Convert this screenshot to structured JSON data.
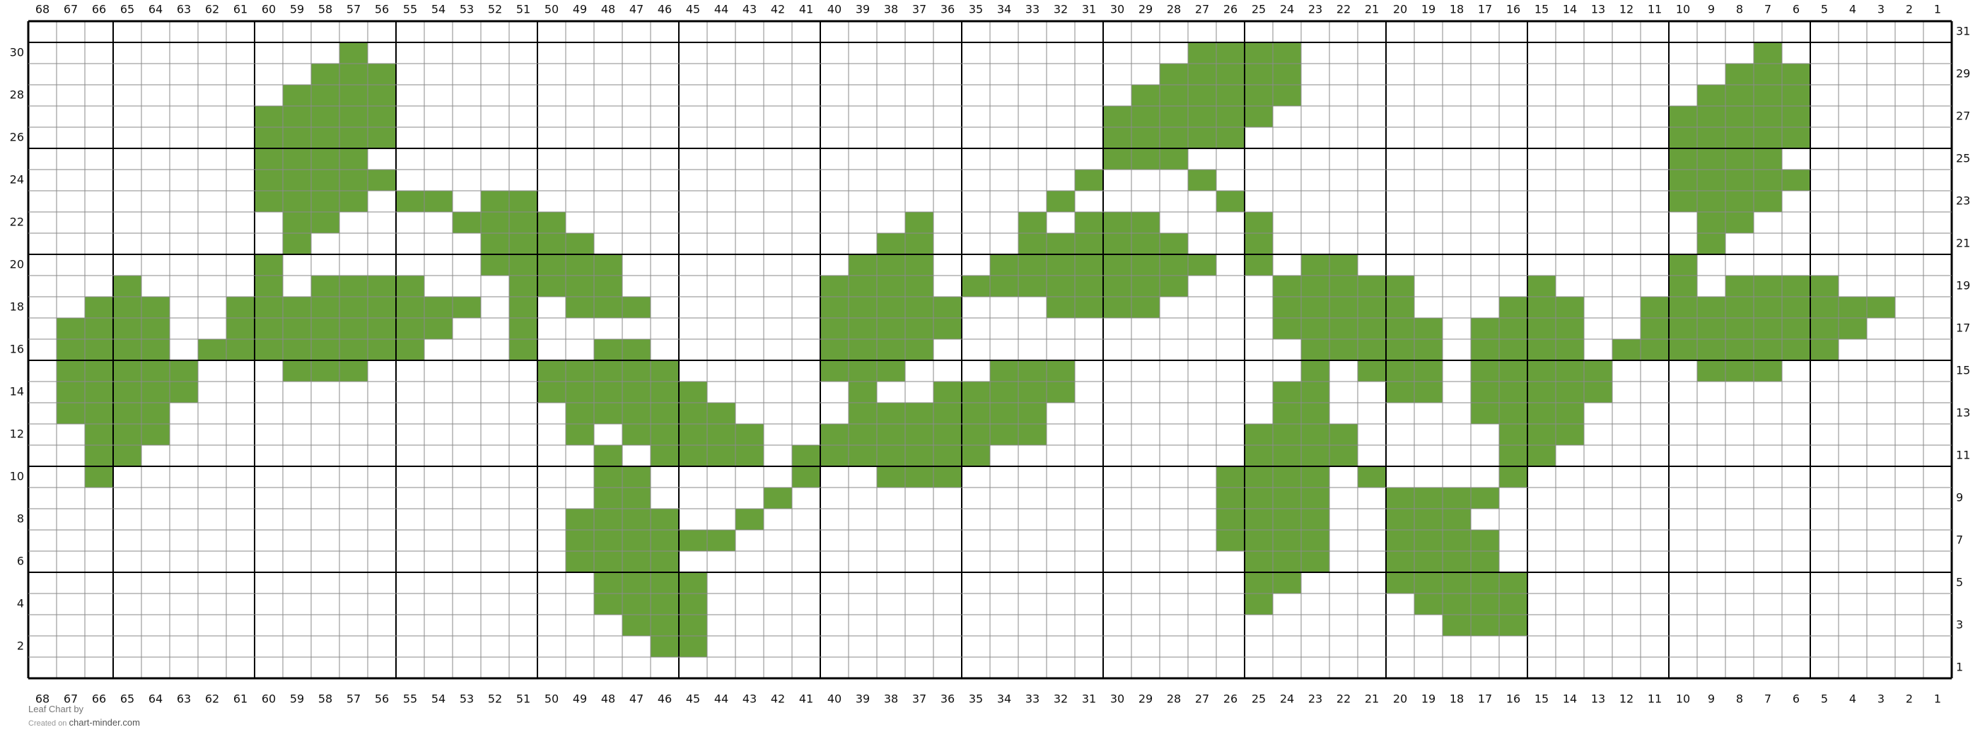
{
  "chart_data": {
    "type": "heatmap",
    "title": "",
    "columns": 68,
    "rows": 31,
    "column_order": "descending-left-to-right",
    "left_row_labels": "even",
    "right_row_labels": "odd",
    "major_grid_every": 5,
    "fill_color": "#68a03a",
    "empty_color": "#ffffff",
    "filled_cells_by_row": {
      "31": [],
      "30": [
        [
          57,
          57
        ],
        [
          27,
          24
        ],
        [
          7,
          7
        ]
      ],
      "29": [
        [
          58,
          56
        ],
        [
          28,
          24
        ],
        [
          8,
          6
        ]
      ],
      "28": [
        [
          59,
          56
        ],
        [
          29,
          24
        ],
        [
          9,
          6
        ]
      ],
      "27": [
        [
          60,
          56
        ],
        [
          30,
          25
        ],
        [
          10,
          6
        ]
      ],
      "26": [
        [
          60,
          56
        ],
        [
          30,
          26
        ],
        [
          10,
          6
        ]
      ],
      "25": [
        [
          60,
          57
        ],
        [
          30,
          28
        ],
        [
          10,
          7
        ]
      ],
      "24": [
        [
          60,
          56
        ],
        [
          31,
          31
        ],
        [
          27,
          27
        ],
        [
          10,
          6
        ]
      ],
      "23": [
        [
          60,
          57
        ],
        [
          55,
          54
        ],
        [
          52,
          51
        ],
        [
          32,
          32
        ],
        [
          26,
          26
        ],
        [
          10,
          7
        ]
      ],
      "22": [
        [
          59,
          58
        ],
        [
          53,
          50
        ],
        [
          37,
          37
        ],
        [
          33,
          33
        ],
        [
          31,
          29
        ],
        [
          25,
          25
        ],
        [
          9,
          8
        ]
      ],
      "21": [
        [
          59,
          59
        ],
        [
          52,
          49
        ],
        [
          38,
          37
        ],
        [
          33,
          28
        ],
        [
          25,
          25
        ],
        [
          9,
          9
        ]
      ],
      "20": [
        [
          60,
          60
        ],
        [
          52,
          48
        ],
        [
          39,
          37
        ],
        [
          34,
          27
        ],
        [
          25,
          25
        ],
        [
          23,
          22
        ],
        [
          10,
          10
        ]
      ],
      "19": [
        [
          65,
          65
        ],
        [
          60,
          60
        ],
        [
          58,
          55
        ],
        [
          51,
          48
        ],
        [
          40,
          37
        ],
        [
          35,
          28
        ],
        [
          24,
          20
        ],
        [
          15,
          15
        ],
        [
          10,
          10
        ],
        [
          8,
          5
        ]
      ],
      "18": [
        [
          66,
          64
        ],
        [
          61,
          53
        ],
        [
          51,
          51
        ],
        [
          49,
          47
        ],
        [
          40,
          36
        ],
        [
          32,
          29
        ],
        [
          24,
          20
        ],
        [
          16,
          14
        ],
        [
          11,
          3
        ]
      ],
      "17": [
        [
          67,
          64
        ],
        [
          61,
          54
        ],
        [
          51,
          51
        ],
        [
          40,
          36
        ],
        [
          24,
          19
        ],
        [
          17,
          14
        ],
        [
          11,
          4
        ]
      ],
      "16": [
        [
          67,
          64
        ],
        [
          62,
          55
        ],
        [
          51,
          51
        ],
        [
          48,
          47
        ],
        [
          40,
          37
        ],
        [
          23,
          19
        ],
        [
          17,
          14
        ],
        [
          12,
          5
        ]
      ],
      "15": [
        [
          67,
          63
        ],
        [
          59,
          57
        ],
        [
          50,
          46
        ],
        [
          40,
          38
        ],
        [
          34,
          32
        ],
        [
          23,
          23
        ],
        [
          21,
          19
        ],
        [
          17,
          13
        ],
        [
          9,
          7
        ]
      ],
      "14": [
        [
          67,
          63
        ],
        [
          50,
          45
        ],
        [
          39,
          39
        ],
        [
          36,
          32
        ],
        [
          24,
          23
        ],
        [
          20,
          19
        ],
        [
          17,
          13
        ]
      ],
      "13": [
        [
          67,
          64
        ],
        [
          49,
          44
        ],
        [
          39,
          33
        ],
        [
          24,
          23
        ],
        [
          17,
          14
        ]
      ],
      "12": [
        [
          66,
          64
        ],
        [
          49,
          49
        ],
        [
          47,
          43
        ],
        [
          40,
          33
        ],
        [
          25,
          22
        ],
        [
          16,
          14
        ]
      ],
      "11": [
        [
          66,
          65
        ],
        [
          48,
          48
        ],
        [
          46,
          43
        ],
        [
          41,
          35
        ],
        [
          25,
          22
        ],
        [
          16,
          15
        ]
      ],
      "10": [
        [
          66,
          66
        ],
        [
          48,
          47
        ],
        [
          41,
          41
        ],
        [
          38,
          36
        ],
        [
          26,
          23
        ],
        [
          21,
          21
        ],
        [
          16,
          16
        ]
      ],
      "9": [
        [
          48,
          47
        ],
        [
          42,
          42
        ],
        [
          26,
          23
        ],
        [
          20,
          17
        ]
      ],
      "8": [
        [
          49,
          46
        ],
        [
          43,
          43
        ],
        [
          26,
          23
        ],
        [
          20,
          18
        ]
      ],
      "7": [
        [
          49,
          44
        ],
        [
          26,
          23
        ],
        [
          20,
          17
        ]
      ],
      "6": [
        [
          49,
          46
        ],
        [
          25,
          23
        ],
        [
          20,
          17
        ]
      ],
      "5": [
        [
          48,
          45
        ],
        [
          25,
          24
        ],
        [
          20,
          16
        ]
      ],
      "4": [
        [
          48,
          45
        ],
        [
          25,
          25
        ],
        [
          19,
          16
        ]
      ],
      "3": [
        [
          47,
          45
        ],
        [
          18,
          16
        ]
      ],
      "2": [
        [
          46,
          45
        ]
      ],
      "1": []
    }
  },
  "footer": {
    "chart_name": "Leaf Chart",
    "by": "by",
    "created_on": "Created on",
    "site": "chart-minder.com"
  }
}
